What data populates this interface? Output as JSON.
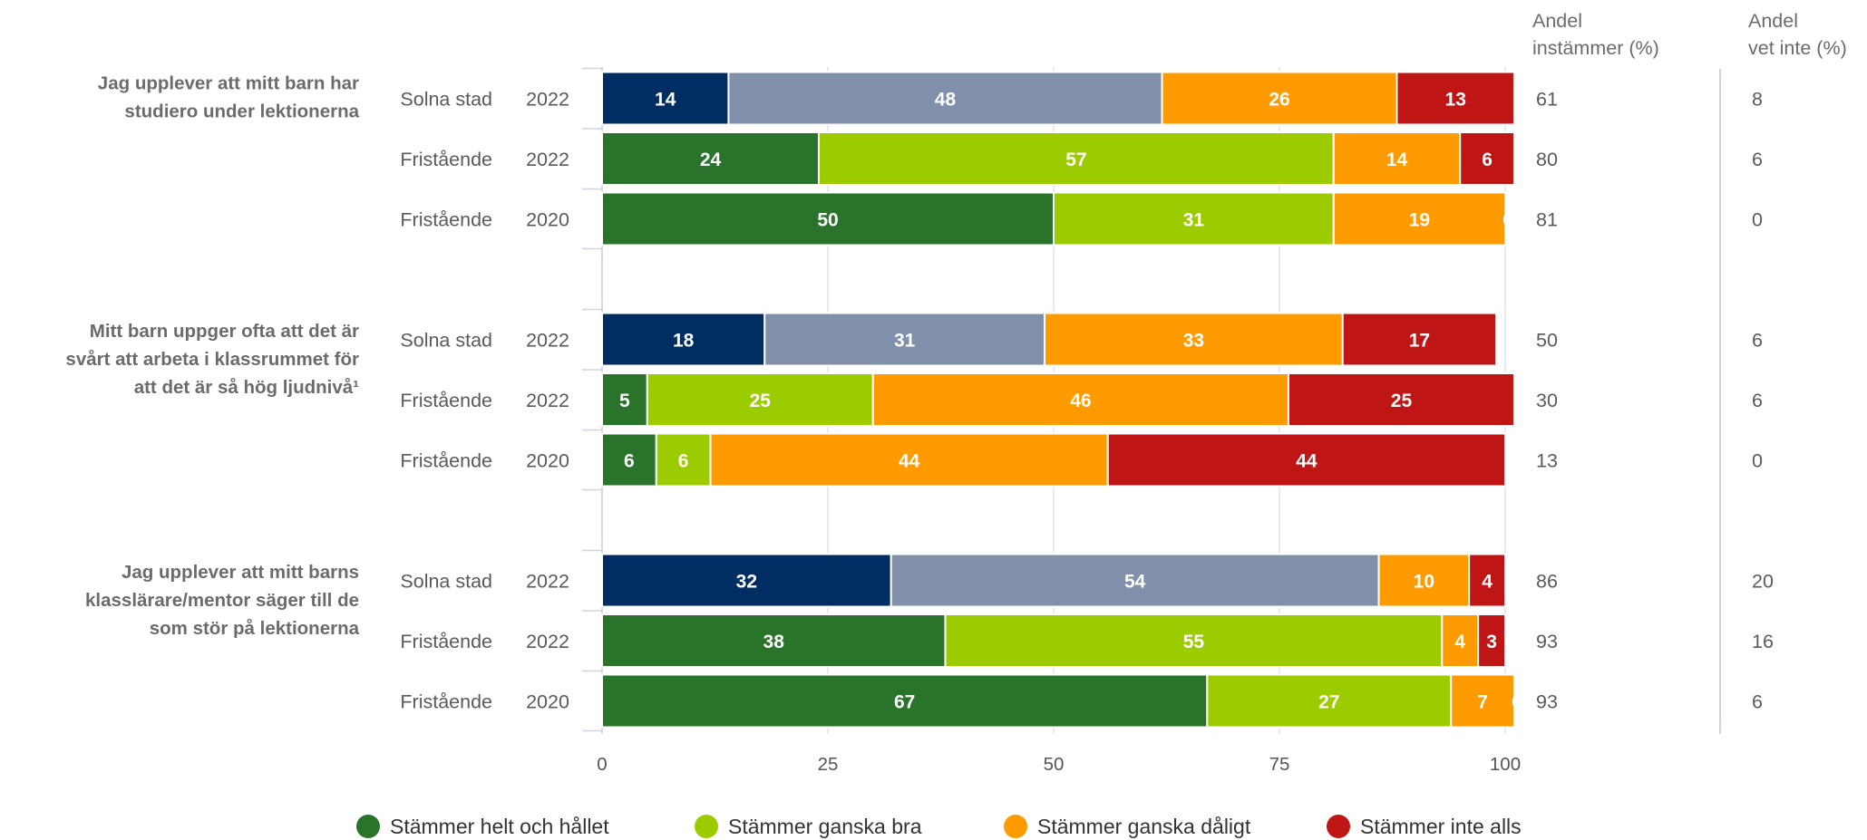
{
  "chart_data": {
    "type": "bar",
    "orientation": "horizontal",
    "stacked": true,
    "xlim": [
      0,
      100
    ],
    "xticks": [
      "0",
      "25",
      "50",
      "75",
      "100"
    ],
    "grid": true,
    "legend_position": "bottom",
    "colors": {
      "helt": "#2a732a",
      "ganska_bra": "#9ccc00",
      "ganska_daligt": "#ff9b00",
      "inte_alls": "#c01515",
      "solna_positive_strong": "#002d62",
      "solna_positive": "#8190aa"
    },
    "legend": [
      {
        "label": "Stämmer helt och hållet",
        "color": "#2a732a"
      },
      {
        "label": "Stämmer ganska bra",
        "color": "#9ccc00"
      },
      {
        "label": "Stämmer ganska dåligt",
        "color": "#ff9b00"
      },
      {
        "label": "Stämmer inte alls",
        "color": "#c01515"
      }
    ],
    "side_columns": [
      {
        "header": [
          "Andel",
          "instämmer (%)"
        ]
      },
      {
        "header": [
          "Andel",
          "vet inte (%)"
        ]
      }
    ],
    "questions": [
      {
        "label": [
          "Jag upplever att mitt barn har",
          "studiero under lektionerna"
        ],
        "rows": [
          {
            "group": "Solna stad",
            "year": "2022",
            "values": [
              14,
              48,
              26,
              13
            ],
            "colors": [
              "#002d62",
              "#8190aa",
              "#ff9b00",
              "#c01515"
            ],
            "instammer": "61",
            "vet_inte": "8"
          },
          {
            "group": "Fristående",
            "year": "2022",
            "values": [
              24,
              57,
              14,
              6
            ],
            "colors": [
              "#2a732a",
              "#9ccc00",
              "#ff9b00",
              "#c01515"
            ],
            "instammer": "80",
            "vet_inte": "6"
          },
          {
            "group": "Fristående",
            "year": "2020",
            "values": [
              50,
              31,
              19,
              0
            ],
            "colors": [
              "#2a732a",
              "#9ccc00",
              "#ff9b00",
              "#c01515"
            ],
            "instammer": "81",
            "vet_inte": "0"
          }
        ]
      },
      {
        "label": [
          "Mitt barn uppger ofta att det är",
          "svårt att arbeta i klassrummet för",
          "att det är så hög ljudnivå¹"
        ],
        "rows": [
          {
            "group": "Solna stad",
            "year": "2022",
            "values": [
              18,
              31,
              33,
              17
            ],
            "colors": [
              "#002d62",
              "#8190aa",
              "#ff9b00",
              "#c01515"
            ],
            "instammer": "50",
            "vet_inte": "6"
          },
          {
            "group": "Fristående",
            "year": "2022",
            "values": [
              5,
              25,
              46,
              25
            ],
            "colors": [
              "#2a732a",
              "#9ccc00",
              "#ff9b00",
              "#c01515"
            ],
            "instammer": "30",
            "vet_inte": "6"
          },
          {
            "group": "Fristående",
            "year": "2020",
            "values": [
              6,
              6,
              44,
              44
            ],
            "colors": [
              "#2a732a",
              "#9ccc00",
              "#ff9b00",
              "#c01515"
            ],
            "instammer": "13",
            "vet_inte": "0"
          }
        ]
      },
      {
        "label": [
          "Jag upplever att mitt barns",
          "klasslärare/mentor säger till de",
          "som stör på lektionerna"
        ],
        "rows": [
          {
            "group": "Solna stad",
            "year": "2022",
            "values": [
              32,
              54,
              10,
              4
            ],
            "colors": [
              "#002d62",
              "#8190aa",
              "#ff9b00",
              "#c01515"
            ],
            "instammer": "86",
            "vet_inte": "20"
          },
          {
            "group": "Fristående",
            "year": "2022",
            "values": [
              38,
              55,
              4,
              3
            ],
            "colors": [
              "#2a732a",
              "#9ccc00",
              "#ff9b00",
              "#c01515"
            ],
            "instammer": "93",
            "vet_inte": "16"
          },
          {
            "group": "Fristående",
            "year": "2020",
            "values": [
              67,
              27,
              7,
              0
            ],
            "colors": [
              "#2a732a",
              "#9ccc00",
              "#ff9b00",
              "#c01515"
            ],
            "instammer": "93",
            "vet_inte": "6"
          }
        ]
      }
    ]
  }
}
